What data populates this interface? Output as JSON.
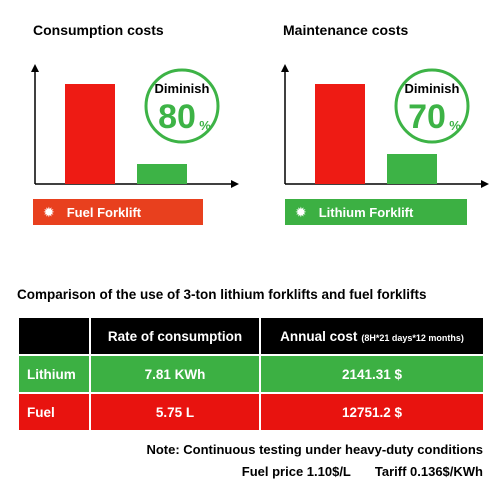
{
  "chart_data": [
    {
      "type": "bar",
      "title": "Consumption costs",
      "categories": [
        "Fuel Forklift",
        "Lithium Forklift"
      ],
      "values": [
        100,
        20
      ],
      "ylim": [
        0,
        120
      ],
      "colors": [
        "#ee1b14",
        "#3db346"
      ],
      "badge": {
        "label": "Diminish",
        "number": "80",
        "unit": "%"
      }
    },
    {
      "type": "bar",
      "title": "Maintenance costs",
      "categories": [
        "Fuel Forklift",
        "Lithium Forklift"
      ],
      "values": [
        100,
        30
      ],
      "ylim": [
        0,
        120
      ],
      "colors": [
        "#ee1b14",
        "#3db346"
      ],
      "badge": {
        "label": "Diminish",
        "number": "70",
        "unit": "%"
      }
    }
  ],
  "legend": {
    "fuel": {
      "label": "Fuel Forklift",
      "color": "#e8401e",
      "icon": "gear-icon"
    },
    "lithium": {
      "label": "Lithium Forklift",
      "color": "#3cb043",
      "icon": "gear-icon"
    }
  },
  "table": {
    "title": "Comparison of the use of 3-ton lithium forklifts and fuel forklifts",
    "headers": {
      "rate": "Rate of consumption",
      "annual": "Annual cost",
      "annual_note": "(8H*21 days*12 months)"
    },
    "rows": [
      {
        "label": "Lithium",
        "rate": "7.81 KWh",
        "annual": "2141.31 $"
      },
      {
        "label": "Fuel",
        "rate": "5.75 L",
        "annual": "12751.2 $"
      }
    ]
  },
  "note": "Note: Continuous testing under heavy-duty conditions",
  "fuel_price": "Fuel price 1.10$/L",
  "tariff": "Tariff 0.136$/KWh"
}
